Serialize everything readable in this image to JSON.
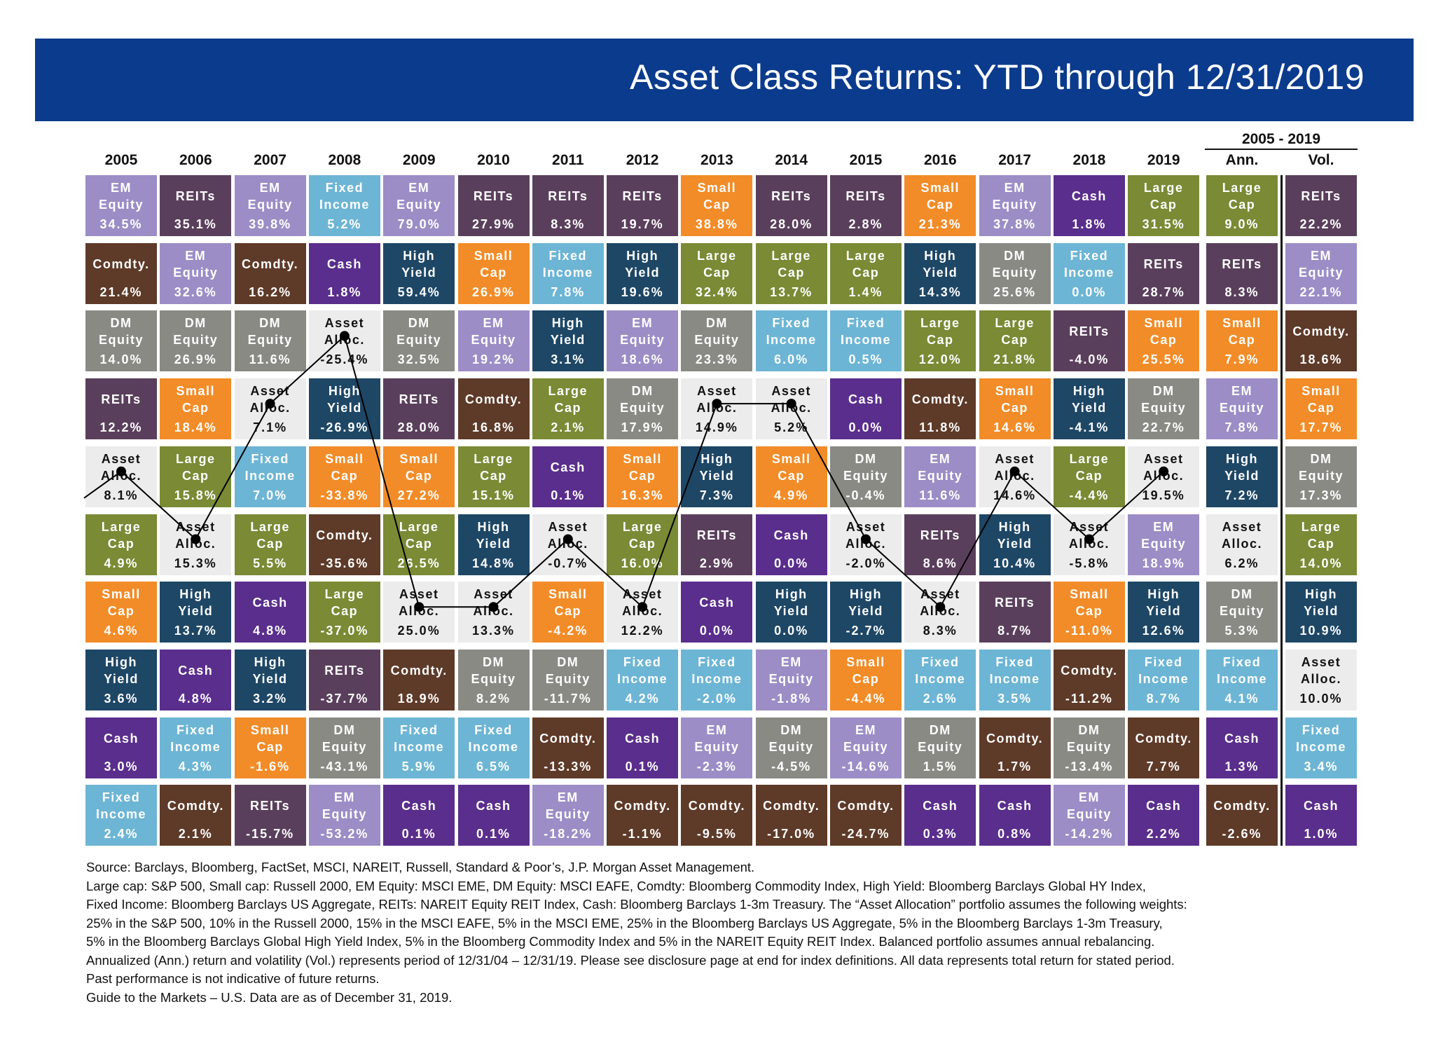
{
  "title": "Asset Class Returns:  YTD through 12/31/2019",
  "colors": {
    "banner": "#0b3b8c",
    "EM Equity": "#9c8dc6",
    "REITs": "#5a3f5c",
    "Fixed Income": "#6db5d4",
    "Cash": "#5a2e8c",
    "Large Cap": "#7a8a35",
    "Small Cap": "#f28c28",
    "Comdty.": "#5e3a28",
    "High Yield": "#1e4766",
    "DM Equity": "#8a8a85",
    "Asset Alloc.": "#ececec"
  },
  "chart_data": {
    "type": "table",
    "title": "Asset Class Returns:  YTD through 12/31/2019",
    "columns": [
      "2005",
      "2006",
      "2007",
      "2008",
      "2009",
      "2010",
      "2011",
      "2012",
      "2013",
      "2014",
      "2015",
      "2016",
      "2017",
      "2018",
      "2019"
    ],
    "summary_header": "2005 - 2019",
    "summary_columns": [
      "Ann.",
      "Vol."
    ],
    "years": [
      [
        [
          "EM Equity",
          "34.5%"
        ],
        [
          "Comdty.",
          "21.4%"
        ],
        [
          "DM Equity",
          "14.0%"
        ],
        [
          "REITs",
          "12.2%"
        ],
        [
          "Asset Alloc.",
          "8.1%"
        ],
        [
          "Large Cap",
          "4.9%"
        ],
        [
          "Small Cap",
          "4.6%"
        ],
        [
          "High Yield",
          "3.6%"
        ],
        [
          "Cash",
          "3.0%"
        ],
        [
          "Fixed Income",
          "2.4%"
        ]
      ],
      [
        [
          "REITs",
          "35.1%"
        ],
        [
          "EM Equity",
          "32.6%"
        ],
        [
          "DM Equity",
          "26.9%"
        ],
        [
          "Small Cap",
          "18.4%"
        ],
        [
          "Large Cap",
          "15.8%"
        ],
        [
          "Asset Alloc.",
          "15.3%"
        ],
        [
          "High Yield",
          "13.7%"
        ],
        [
          "Cash",
          "4.8%"
        ],
        [
          "Fixed Income",
          "4.3%"
        ],
        [
          "Comdty.",
          "2.1%"
        ]
      ],
      [
        [
          "EM Equity",
          "39.8%"
        ],
        [
          "Comdty.",
          "16.2%"
        ],
        [
          "DM Equity",
          "11.6%"
        ],
        [
          "Asset Alloc.",
          "7.1%"
        ],
        [
          "Fixed Income",
          "7.0%"
        ],
        [
          "Large Cap",
          "5.5%"
        ],
        [
          "Cash",
          "4.8%"
        ],
        [
          "High Yield",
          "3.2%"
        ],
        [
          "Small Cap",
          "-1.6%"
        ],
        [
          "REITs",
          "-15.7%"
        ]
      ],
      [
        [
          "Fixed Income",
          "5.2%"
        ],
        [
          "Cash",
          "1.8%"
        ],
        [
          "Asset Alloc.",
          "-25.4%"
        ],
        [
          "High Yield",
          "-26.9%"
        ],
        [
          "Small Cap",
          "-33.8%"
        ],
        [
          "Comdty.",
          "-35.6%"
        ],
        [
          "Large Cap",
          "-37.0%"
        ],
        [
          "REITs",
          "-37.7%"
        ],
        [
          "DM Equity",
          "-43.1%"
        ],
        [
          "EM Equity",
          "-53.2%"
        ]
      ],
      [
        [
          "EM Equity",
          "79.0%"
        ],
        [
          "High Yield",
          "59.4%"
        ],
        [
          "DM Equity",
          "32.5%"
        ],
        [
          "REITs",
          "28.0%"
        ],
        [
          "Small Cap",
          "27.2%"
        ],
        [
          "Large Cap",
          "26.5%"
        ],
        [
          "Asset Alloc.",
          "25.0%"
        ],
        [
          "Comdty.",
          "18.9%"
        ],
        [
          "Fixed Income",
          "5.9%"
        ],
        [
          "Cash",
          "0.1%"
        ]
      ],
      [
        [
          "REITs",
          "27.9%"
        ],
        [
          "Small Cap",
          "26.9%"
        ],
        [
          "EM Equity",
          "19.2%"
        ],
        [
          "Comdty.",
          "16.8%"
        ],
        [
          "Large Cap",
          "15.1%"
        ],
        [
          "High Yield",
          "14.8%"
        ],
        [
          "Asset Alloc.",
          "13.3%"
        ],
        [
          "DM Equity",
          "8.2%"
        ],
        [
          "Fixed Income",
          "6.5%"
        ],
        [
          "Cash",
          "0.1%"
        ]
      ],
      [
        [
          "REITs",
          "8.3%"
        ],
        [
          "Fixed Income",
          "7.8%"
        ],
        [
          "High Yield",
          "3.1%"
        ],
        [
          "Large Cap",
          "2.1%"
        ],
        [
          "Cash",
          "0.1%"
        ],
        [
          "Asset Alloc.",
          "-0.7%"
        ],
        [
          "Small Cap",
          "-4.2%"
        ],
        [
          "DM Equity",
          "-11.7%"
        ],
        [
          "Comdty.",
          "-13.3%"
        ],
        [
          "EM Equity",
          "-18.2%"
        ]
      ],
      [
        [
          "REITs",
          "19.7%"
        ],
        [
          "High Yield",
          "19.6%"
        ],
        [
          "EM Equity",
          "18.6%"
        ],
        [
          "DM Equity",
          "17.9%"
        ],
        [
          "Small Cap",
          "16.3%"
        ],
        [
          "Large Cap",
          "16.0%"
        ],
        [
          "Asset Alloc.",
          "12.2%"
        ],
        [
          "Fixed Income",
          "4.2%"
        ],
        [
          "Cash",
          "0.1%"
        ],
        [
          "Comdty.",
          "-1.1%"
        ]
      ],
      [
        [
          "Small Cap",
          "38.8%"
        ],
        [
          "Large Cap",
          "32.4%"
        ],
        [
          "DM Equity",
          "23.3%"
        ],
        [
          "Asset Alloc.",
          "14.9%"
        ],
        [
          "High Yield",
          "7.3%"
        ],
        [
          "REITs",
          "2.9%"
        ],
        [
          "Cash",
          "0.0%"
        ],
        [
          "Fixed Income",
          "-2.0%"
        ],
        [
          "EM Equity",
          "-2.3%"
        ],
        [
          "Comdty.",
          "-9.5%"
        ]
      ],
      [
        [
          "REITs",
          "28.0%"
        ],
        [
          "Large Cap",
          "13.7%"
        ],
        [
          "Fixed Income",
          "6.0%"
        ],
        [
          "Asset Alloc.",
          "5.2%"
        ],
        [
          "Small Cap",
          "4.9%"
        ],
        [
          "Cash",
          "0.0%"
        ],
        [
          "High Yield",
          "0.0%"
        ],
        [
          "EM Equity",
          "-1.8%"
        ],
        [
          "DM Equity",
          "-4.5%"
        ],
        [
          "Comdty.",
          "-17.0%"
        ]
      ],
      [
        [
          "REITs",
          "2.8%"
        ],
        [
          "Large Cap",
          "1.4%"
        ],
        [
          "Fixed Income",
          "0.5%"
        ],
        [
          "Cash",
          "0.0%"
        ],
        [
          "DM Equity",
          "-0.4%"
        ],
        [
          "Asset Alloc.",
          "-2.0%"
        ],
        [
          "High Yield",
          "-2.7%"
        ],
        [
          "Small Cap",
          "-4.4%"
        ],
        [
          "EM Equity",
          "-14.6%"
        ],
        [
          "Comdty.",
          "-24.7%"
        ]
      ],
      [
        [
          "Small Cap",
          "21.3%"
        ],
        [
          "High Yield",
          "14.3%"
        ],
        [
          "Large Cap",
          "12.0%"
        ],
        [
          "Comdty.",
          "11.8%"
        ],
        [
          "EM Equity",
          "11.6%"
        ],
        [
          "REITs",
          "8.6%"
        ],
        [
          "Asset Alloc.",
          "8.3%"
        ],
        [
          "Fixed Income",
          "2.6%"
        ],
        [
          "DM Equity",
          "1.5%"
        ],
        [
          "Cash",
          "0.3%"
        ]
      ],
      [
        [
          "EM Equity",
          "37.8%"
        ],
        [
          "DM Equity",
          "25.6%"
        ],
        [
          "Large Cap",
          "21.8%"
        ],
        [
          "Small Cap",
          "14.6%"
        ],
        [
          "Asset Alloc.",
          "14.6%"
        ],
        [
          "High Yield",
          "10.4%"
        ],
        [
          "REITs",
          "8.7%"
        ],
        [
          "Fixed Income",
          "3.5%"
        ],
        [
          "Comdty.",
          "1.7%"
        ],
        [
          "Cash",
          "0.8%"
        ]
      ],
      [
        [
          "Cash",
          "1.8%"
        ],
        [
          "Fixed Income",
          "0.0%"
        ],
        [
          "REITs",
          "-4.0%"
        ],
        [
          "High Yield",
          "-4.1%"
        ],
        [
          "Large Cap",
          "-4.4%"
        ],
        [
          "Asset Alloc.",
          "-5.8%"
        ],
        [
          "Small Cap",
          "-11.0%"
        ],
        [
          "Comdty.",
          "-11.2%"
        ],
        [
          "DM Equity",
          "-13.4%"
        ],
        [
          "EM Equity",
          "-14.2%"
        ]
      ],
      [
        [
          "Large Cap",
          "31.5%"
        ],
        [
          "REITs",
          "28.7%"
        ],
        [
          "Small Cap",
          "25.5%"
        ],
        [
          "DM Equity",
          "22.7%"
        ],
        [
          "Asset Alloc.",
          "19.5%"
        ],
        [
          "EM Equity",
          "18.9%"
        ],
        [
          "High Yield",
          "12.6%"
        ],
        [
          "Fixed Income",
          "8.7%"
        ],
        [
          "Comdty.",
          "7.7%"
        ],
        [
          "Cash",
          "2.2%"
        ]
      ]
    ],
    "annualized": [
      [
        "Large Cap",
        "9.0%"
      ],
      [
        "REITs",
        "8.3%"
      ],
      [
        "Small Cap",
        "7.9%"
      ],
      [
        "EM Equity",
        "7.8%"
      ],
      [
        "High Yield",
        "7.2%"
      ],
      [
        "Asset Alloc.",
        "6.2%"
      ],
      [
        "DM Equity",
        "5.3%"
      ],
      [
        "Fixed Income",
        "4.1%"
      ],
      [
        "Cash",
        "1.3%"
      ],
      [
        "Comdty.",
        "-2.6%"
      ]
    ],
    "volatility": [
      [
        "REITs",
        "22.2%"
      ],
      [
        "EM Equity",
        "22.1%"
      ],
      [
        "Comdty.",
        "18.6%"
      ],
      [
        "Small Cap",
        "17.7%"
      ],
      [
        "DM Equity",
        "17.3%"
      ],
      [
        "Large Cap",
        "14.0%"
      ],
      [
        "High Yield",
        "10.9%"
      ],
      [
        "Asset Alloc.",
        "10.0%"
      ],
      [
        "Fixed Income",
        "3.4%"
      ],
      [
        "Cash",
        "1.0%"
      ]
    ]
  },
  "labels": {
    "EM Equity": [
      "EM",
      "Equity"
    ],
    "REITs": [
      "REITs"
    ],
    "Fixed Income": [
      "Fixed",
      "Income"
    ],
    "Cash": [
      "Cash"
    ],
    "Large Cap": [
      "Large",
      "Cap"
    ],
    "Small Cap": [
      "Small",
      "Cap"
    ],
    "Comdty.": [
      "Comdty."
    ],
    "High Yield": [
      "High",
      "Yield"
    ],
    "DM Equity": [
      "DM",
      "Equity"
    ],
    "Asset Alloc.": [
      "Asset",
      "Alloc."
    ]
  },
  "notes": [
    "Source: Barclays, Bloomberg, FactSet, MSCI, NAREIT, Russell, Standard & Poor’s, J.P. Morgan Asset Management.",
    "Large cap: S&P 500, Small cap: Russell 2000, EM Equity: MSCI EME, DM Equity: MSCI EAFE, Comdty: Bloomberg Commodity Index, High Yield: Bloomberg Barclays Global HY Index,",
    "Fixed Income: Bloomberg Barclays US Aggregate, REITs: NAREIT Equity REIT Index, Cash: Bloomberg Barclays 1-3m Treasury. The “Asset Allocation” portfolio assumes the following weights:",
    "25% in the S&P 500, 10% in the Russell 2000, 15% in the MSCI EAFE, 5% in the MSCI EME, 25% in the Bloomberg Barclays US Aggregate, 5% in the Bloomberg Barclays 1-3m Treasury,",
    "5% in the Bloomberg Barclays Global High Yield Index, 5% in the Bloomberg Commodity Index and 5% in the NAREIT Equity REIT Index. Balanced portfolio assumes annual rebalancing.",
    "Annualized (Ann.) return and volatility (Vol.) represents period of 12/31/04 – 12/31/19. Please see disclosure page at end for index definitions. All data represents total return for stated period.",
    "Past performance is not indicative of future returns.",
    "Guide to the Markets – U.S. Data are as of December 31, 2019."
  ]
}
